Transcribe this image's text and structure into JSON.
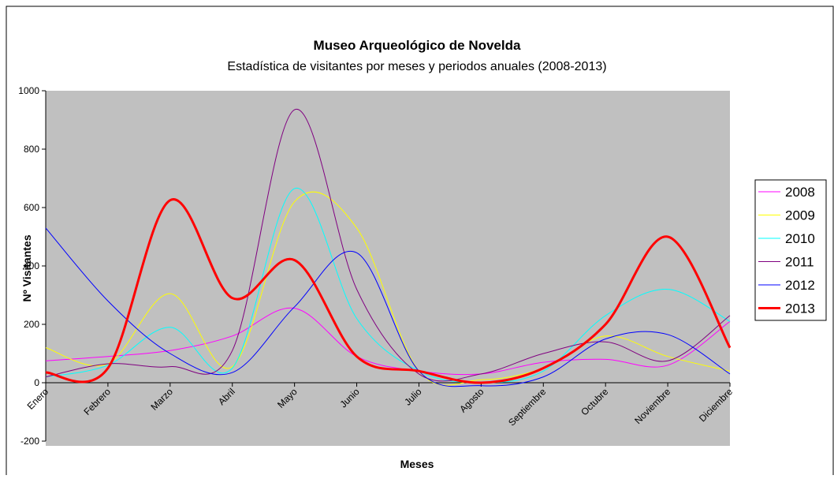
{
  "chart_data": {
    "type": "line",
    "title": "Museo Arqueológico de Novelda",
    "subtitle": "Estadística de visitantes por meses y periodos anuales (2008-2013)",
    "x_label": "Meses",
    "y_label": "Nº Visitantes",
    "categories": [
      "Enero",
      "Febrero",
      "Marzo",
      "Abril",
      "Mayo",
      "Junio",
      "Julio",
      "Agosto",
      "Septiembre",
      "Octubre",
      "Noviembre",
      "Diciembre"
    ],
    "ylim": [
      -200,
      1000
    ],
    "yticks": [
      -200,
      0,
      200,
      400,
      600,
      800,
      1000
    ],
    "smooth": true,
    "legend": "right",
    "series": [
      {
        "name": "2008",
        "color": "#ff00ff",
        "width": 1,
        "values": [
          75,
          90,
          110,
          160,
          255,
          90,
          40,
          30,
          70,
          80,
          60,
          210
        ]
      },
      {
        "name": "2009",
        "color": "#ffff00",
        "width": 1,
        "values": [
          120,
          65,
          305,
          55,
          620,
          530,
          40,
          10,
          50,
          160,
          90,
          40
        ]
      },
      {
        "name": "2010",
        "color": "#00ffff",
        "width": 1,
        "values": [
          20,
          60,
          190,
          50,
          665,
          220,
          40,
          0,
          40,
          230,
          320,
          210
        ]
      },
      {
        "name": "2011",
        "color": "#800080",
        "width": 1,
        "values": [
          20,
          65,
          55,
          110,
          935,
          320,
          30,
          30,
          100,
          140,
          75,
          230
        ]
      },
      {
        "name": "2012",
        "color": "#0000ff",
        "width": 1,
        "values": [
          530,
          280,
          100,
          35,
          260,
          445,
          40,
          -10,
          20,
          150,
          165,
          30
        ]
      },
      {
        "name": "2013",
        "color": "#ff0000",
        "width": 3,
        "values": [
          35,
          50,
          625,
          290,
          420,
          90,
          40,
          0,
          50,
          200,
          500,
          120
        ]
      }
    ]
  }
}
